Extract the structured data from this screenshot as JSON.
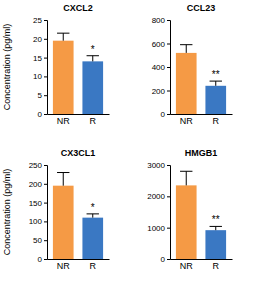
{
  "chart_data": [
    {
      "type": "bar",
      "title": "CXCL2",
      "y_label": "Concentration (pg/ml)",
      "categories": [
        "NR",
        "R"
      ],
      "values": [
        19.5,
        14
      ],
      "errors": [
        2,
        1.5
      ],
      "colors": [
        "#f59a45",
        "#3a78c3"
      ],
      "ylim": [
        0,
        25
      ],
      "yticks": [
        0,
        5,
        10,
        15,
        20,
        25
      ],
      "annotations": [
        {
          "category": "R",
          "text": "*"
        }
      ]
    },
    {
      "type": "bar",
      "title": "CCL23",
      "categories": [
        "NR",
        "R"
      ],
      "values": [
        520,
        240
      ],
      "errors": [
        70,
        40
      ],
      "colors": [
        "#f59a45",
        "#3a78c3"
      ],
      "ylim": [
        0,
        800
      ],
      "yticks": [
        0,
        200,
        400,
        600,
        800
      ],
      "annotations": [
        {
          "category": "R",
          "text": "**"
        }
      ]
    },
    {
      "type": "bar",
      "title": "CX3CL1",
      "y_label": "Concentration (pg/ml)",
      "categories": [
        "NR",
        "R"
      ],
      "values": [
        195,
        110
      ],
      "errors": [
        35,
        10
      ],
      "colors": [
        "#f59a45",
        "#3a78c3"
      ],
      "ylim": [
        0,
        250
      ],
      "yticks": [
        0,
        50,
        100,
        150,
        200,
        250
      ],
      "annotations": [
        {
          "category": "R",
          "text": "*"
        }
      ]
    },
    {
      "type": "bar",
      "title": "HMGB1",
      "categories": [
        "NR",
        "R"
      ],
      "values": [
        2350,
        920
      ],
      "errors": [
        450,
        120
      ],
      "colors": [
        "#f59a45",
        "#3a78c3"
      ],
      "ylim": [
        0,
        3000
      ],
      "yticks": [
        0,
        1000,
        2000,
        3000
      ],
      "annotations": [
        {
          "category": "R",
          "text": "**"
        }
      ]
    }
  ]
}
